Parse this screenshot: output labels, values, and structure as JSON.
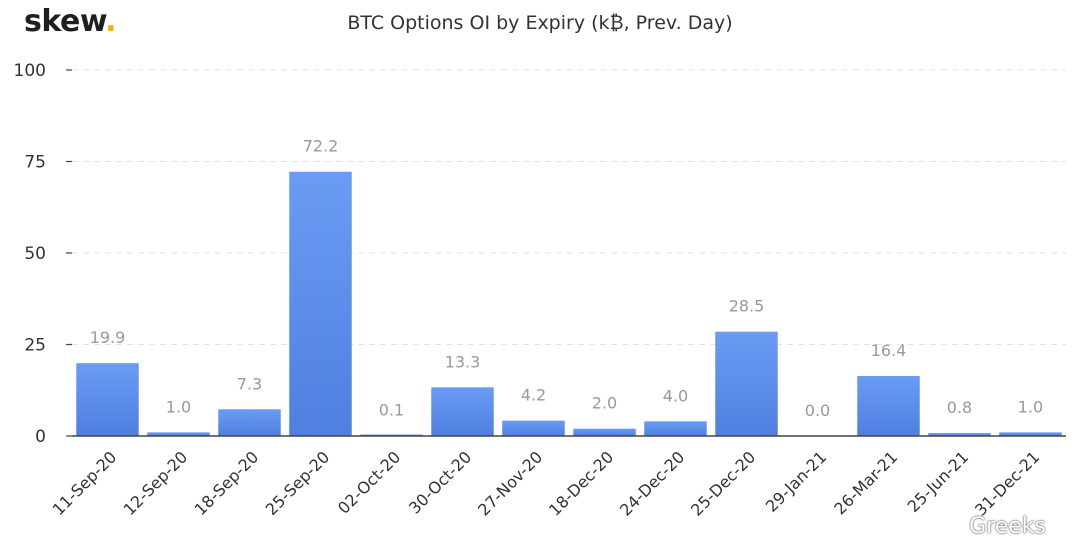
{
  "logo": {
    "text": "skew",
    "dot": "."
  },
  "watermark": "Greeks",
  "chart_data": {
    "type": "bar",
    "title": "BTC Options OI by Expiry (k₿, Prev. Day)",
    "xlabel": "",
    "ylabel": "",
    "ylim": [
      0,
      100
    ],
    "yticks": [
      0,
      25,
      50,
      75,
      100
    ],
    "grid": true,
    "legend": "none",
    "bar_color": "#5b8def",
    "categories": [
      "11-Sep-20",
      "12-Sep-20",
      "18-Sep-20",
      "25-Sep-20",
      "02-Oct-20",
      "30-Oct-20",
      "27-Nov-20",
      "18-Dec-20",
      "24-Dec-20",
      "25-Dec-20",
      "29-Jan-21",
      "26-Mar-21",
      "25-Jun-21",
      "31-Dec-21"
    ],
    "values": [
      19.9,
      1.0,
      7.3,
      72.2,
      0.1,
      13.3,
      4.2,
      2.0,
      4.0,
      28.5,
      0.0,
      16.4,
      0.8,
      1.0
    ],
    "data_labels": [
      "19.9",
      "1.0",
      "7.3",
      "72.2",
      "0.1",
      "13.3",
      "4.2",
      "2.0",
      "4.0",
      "28.5",
      "0.0",
      "16.4",
      "0.8",
      "1.0"
    ]
  }
}
